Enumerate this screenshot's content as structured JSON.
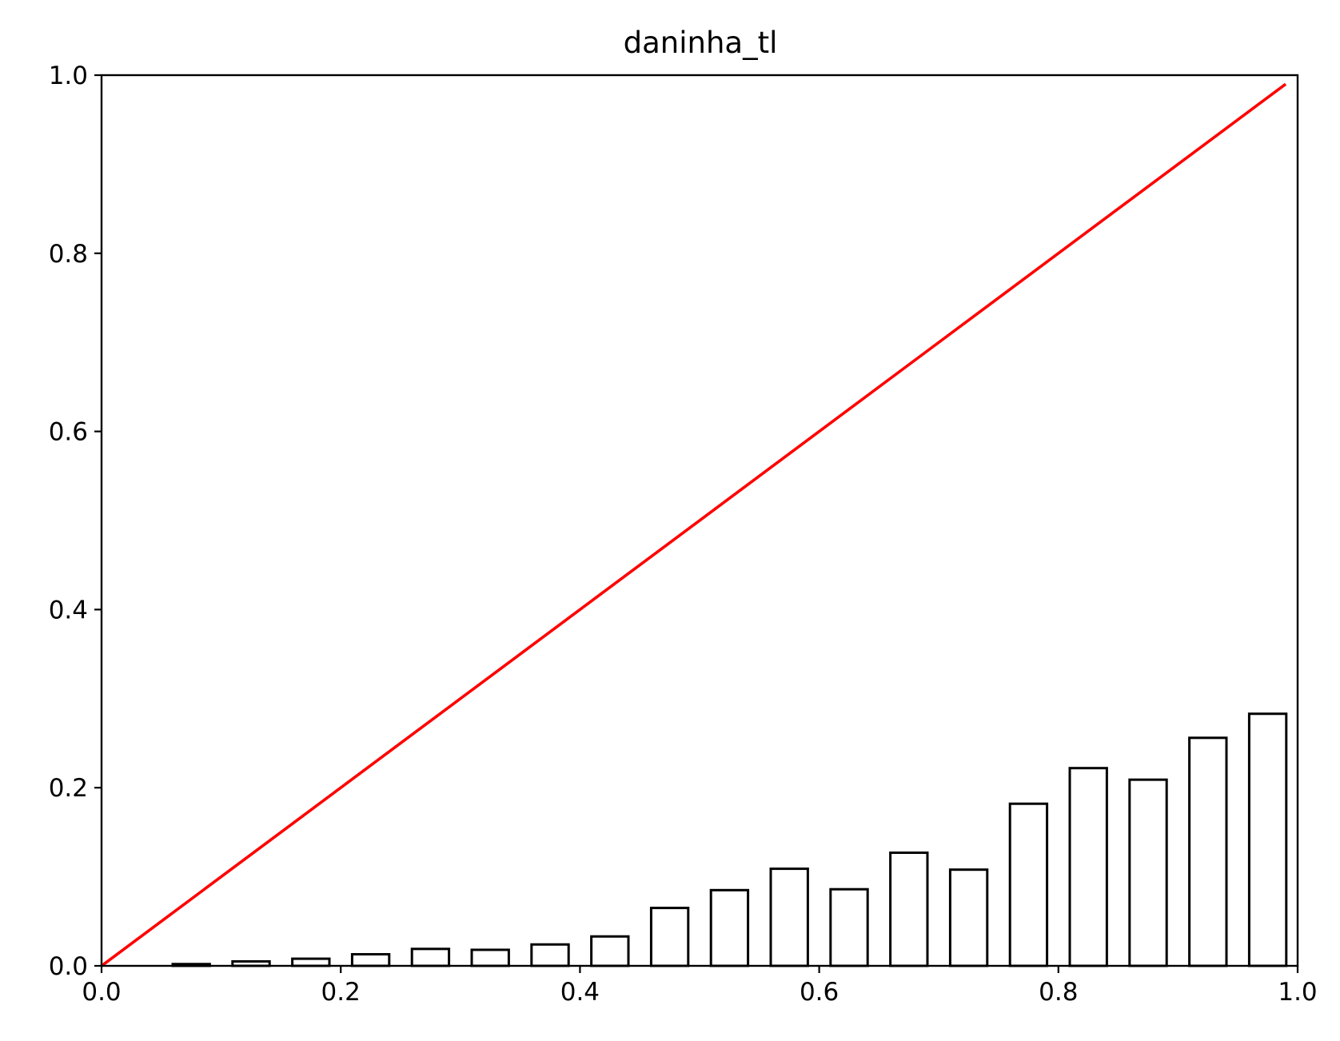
{
  "chart_data": {
    "type": "bar",
    "title": "daninha_tl",
    "xlabel": "",
    "ylabel": "",
    "xlim": [
      0.0,
      1.0
    ],
    "ylim": [
      0.0,
      1.0
    ],
    "grid": false,
    "x_ticks": [
      "0.0",
      "0.2",
      "0.4",
      "0.6",
      "0.8",
      "1.0"
    ],
    "y_ticks": [
      "0.0",
      "0.2",
      "0.4",
      "0.6",
      "0.8",
      "1.0"
    ],
    "bin_width": 0.05,
    "x": [
      0.025,
      0.075,
      0.125,
      0.175,
      0.225,
      0.275,
      0.325,
      0.375,
      0.425,
      0.475,
      0.525,
      0.575,
      0.625,
      0.675,
      0.725,
      0.775,
      0.825,
      0.875,
      0.925,
      0.975
    ],
    "values": [
      0.0,
      0.002,
      0.005,
      0.008,
      0.013,
      0.019,
      0.018,
      0.024,
      0.033,
      0.065,
      0.085,
      0.109,
      0.086,
      0.127,
      0.108,
      0.182,
      0.222,
      0.209,
      0.256,
      0.283
    ],
    "reference_line": {
      "color": "#ff0000",
      "x": [
        0.0,
        0.99
      ],
      "y": [
        0.0,
        0.99
      ]
    },
    "bar_fill": "#ffffff",
    "bar_edge": "#000000"
  }
}
